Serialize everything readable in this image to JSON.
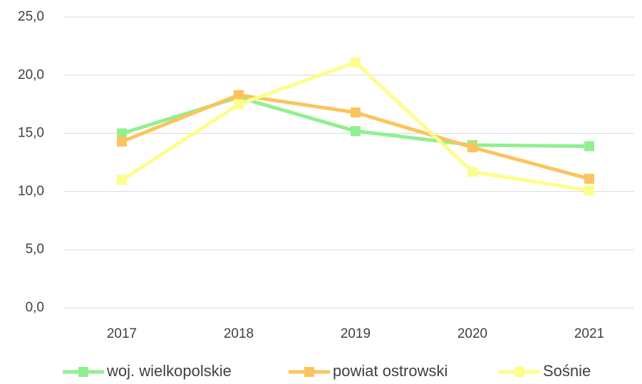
{
  "chart_data": {
    "type": "line",
    "categories": [
      "2017",
      "2018",
      "2019",
      "2020",
      "2021"
    ],
    "series": [
      {
        "name": "woj. wielkopolskie",
        "color": "#8ff08f",
        "values": [
          15.0,
          18.1,
          15.2,
          14.0,
          13.9
        ]
      },
      {
        "name": "powiat ostrowski",
        "color": "#fbc45c",
        "values": [
          14.3,
          18.3,
          16.8,
          13.8,
          11.1
        ]
      },
      {
        "name": "Sośnie",
        "color": "#fdfd8c",
        "values": [
          11.0,
          17.5,
          21.1,
          11.7,
          10.1
        ]
      }
    ],
    "ylim": [
      0,
      25
    ],
    "yticks": [
      {
        "value": 0,
        "label": "0,0"
      },
      {
        "value": 5,
        "label": "5,0"
      },
      {
        "value": 10,
        "label": "10,0"
      },
      {
        "value": 15,
        "label": "15,0"
      },
      {
        "value": 20,
        "label": "20,0"
      },
      {
        "value": 25,
        "label": "25,0"
      }
    ],
    "grid": true,
    "legend": "bottom"
  }
}
